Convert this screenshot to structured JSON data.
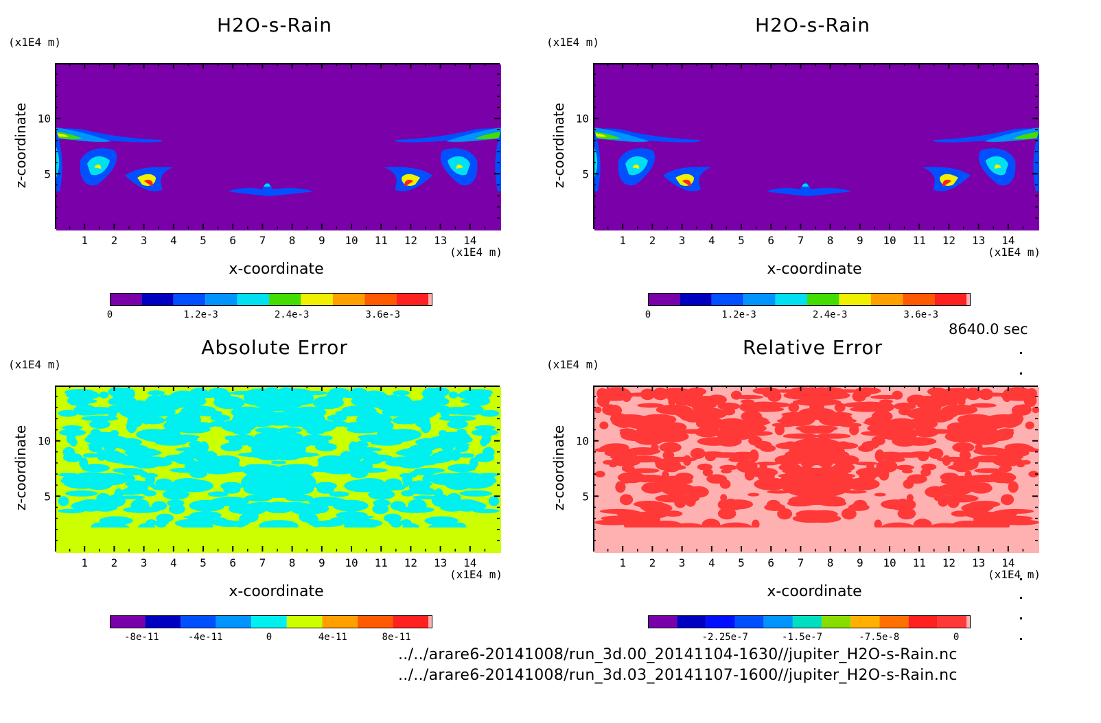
{
  "colors": {
    "rain": [
      "#7a00aa",
      "#0000c0",
      "#0050ff",
      "#0094ff",
      "#00e0f0",
      "#44dd00",
      "#f0f000",
      "#ffa000",
      "#ff5a00",
      "#ff2020",
      "#ffb0b0"
    ],
    "abs": [
      "#7a00aa",
      "#0000c0",
      "#0050ff",
      "#0094ff",
      "#00f0f0",
      "#ccff00",
      "#ffa000",
      "#ff5a00",
      "#ff2020",
      "#ffb0b0"
    ],
    "rel": [
      "#7a00aa",
      "#0000c0",
      "#0010ff",
      "#0050ff",
      "#0094ff",
      "#00e0c0",
      "#88dd00",
      "#ffb000",
      "#ff7000",
      "#ff2020",
      "#ff3838",
      "#ffb0b0"
    ]
  },
  "panels": [
    {
      "title": "H2O-s-Rain",
      "ylabel": "z-coordinate",
      "xlabel": "x-coordinate",
      "y_unit": "(x1E4 m)",
      "x_unit": "(x1E4 m)",
      "x_ticks": [
        "1",
        "2",
        "3",
        "4",
        "5",
        "6",
        "7",
        "8",
        "9",
        "10",
        "11",
        "12",
        "13",
        "14"
      ],
      "y_ticks": [
        "5",
        "10"
      ],
      "colorbar_labels": [
        "0",
        "1.2e-3",
        "2.4e-3",
        "3.6e-3"
      ]
    },
    {
      "title": "H2O-s-Rain",
      "ylabel": "z-coordinate",
      "xlabel": "x-coordinate",
      "y_unit": "(x1E4 m)",
      "x_unit": "(x1E4 m)",
      "x_ticks": [
        "1",
        "2",
        "3",
        "4",
        "5",
        "6",
        "7",
        "8",
        "9",
        "10",
        "11",
        "12",
        "13",
        "14"
      ],
      "y_ticks": [
        "5",
        "10"
      ],
      "colorbar_labels": [
        "0",
        "1.2e-3",
        "2.4e-3",
        "3.6e-3"
      ]
    },
    {
      "title": "Absolute Error",
      "ylabel": "z-coordinate",
      "xlabel": "x-coordinate",
      "y_unit": "(x1E4 m)",
      "x_unit": "(x1E4 m)",
      "x_ticks": [
        "1",
        "2",
        "3",
        "4",
        "5",
        "6",
        "7",
        "8",
        "9",
        "10",
        "11",
        "12",
        "13",
        "14"
      ],
      "y_ticks": [
        "5",
        "10"
      ],
      "colorbar_labels": [
        "-8e-11",
        "-4e-11",
        "0",
        "4e-11",
        "8e-11"
      ]
    },
    {
      "title": "Relative Error",
      "ylabel": "z-coordinate",
      "xlabel": "x-coordinate",
      "y_unit": "(x1E4 m)",
      "x_unit": "(x1E4 m)",
      "x_ticks": [
        "1",
        "2",
        "3",
        "4",
        "5",
        "6",
        "7",
        "8",
        "9",
        "10",
        "11",
        "12",
        "13",
        "14"
      ],
      "y_ticks": [
        "5",
        "10"
      ],
      "colorbar_labels": [
        "-2.25e-7",
        "-1.5e-7",
        "-7.5e-8",
        "0"
      ]
    }
  ],
  "timestamp": "8640.0 sec",
  "files": [
    "../../arare6-20141008/run_3d.00_20141104-1630//jupiter_H2O-s-Rain.nc",
    "../../arare6-20141008/run_3d.03_20141107-1600//jupiter_H2O-s-Rain.nc"
  ],
  "chart_data": [
    {
      "type": "heatmap",
      "title": "H2O-s-Rain",
      "xlabel": "x-coordinate",
      "ylabel": "z-coordinate",
      "xlim": [
        0,
        15
      ],
      "ylim": [
        0,
        15
      ],
      "colorbar": {
        "min": 0,
        "max": 0.0042,
        "ticks": [
          0,
          0.0012,
          0.0024,
          0.0036
        ]
      }
    },
    {
      "type": "heatmap",
      "title": "H2O-s-Rain",
      "xlabel": "x-coordinate",
      "ylabel": "z-coordinate",
      "xlim": [
        0,
        15
      ],
      "ylim": [
        0,
        15
      ],
      "colorbar": {
        "min": 0,
        "max": 0.0042,
        "ticks": [
          0,
          0.0012,
          0.0024,
          0.0036
        ]
      }
    },
    {
      "type": "heatmap",
      "title": "Absolute Error",
      "xlabel": "x-coordinate",
      "ylabel": "z-coordinate",
      "xlim": [
        0,
        15
      ],
      "ylim": [
        0,
        15
      ],
      "colorbar": {
        "min": -1e-10,
        "max": 1e-10,
        "ticks": [
          -8e-11,
          -4e-11,
          0,
          4e-11,
          8e-11
        ]
      }
    },
    {
      "type": "heatmap",
      "title": "Relative Error",
      "xlabel": "x-coordinate",
      "ylabel": "z-coordinate",
      "xlim": [
        0,
        15
      ],
      "ylim": [
        0,
        15
      ],
      "colorbar": {
        "min": -3e-07,
        "max": 1e-08,
        "ticks": [
          -2.25e-07,
          -1.5e-07,
          -7.5e-08,
          0
        ]
      }
    }
  ]
}
